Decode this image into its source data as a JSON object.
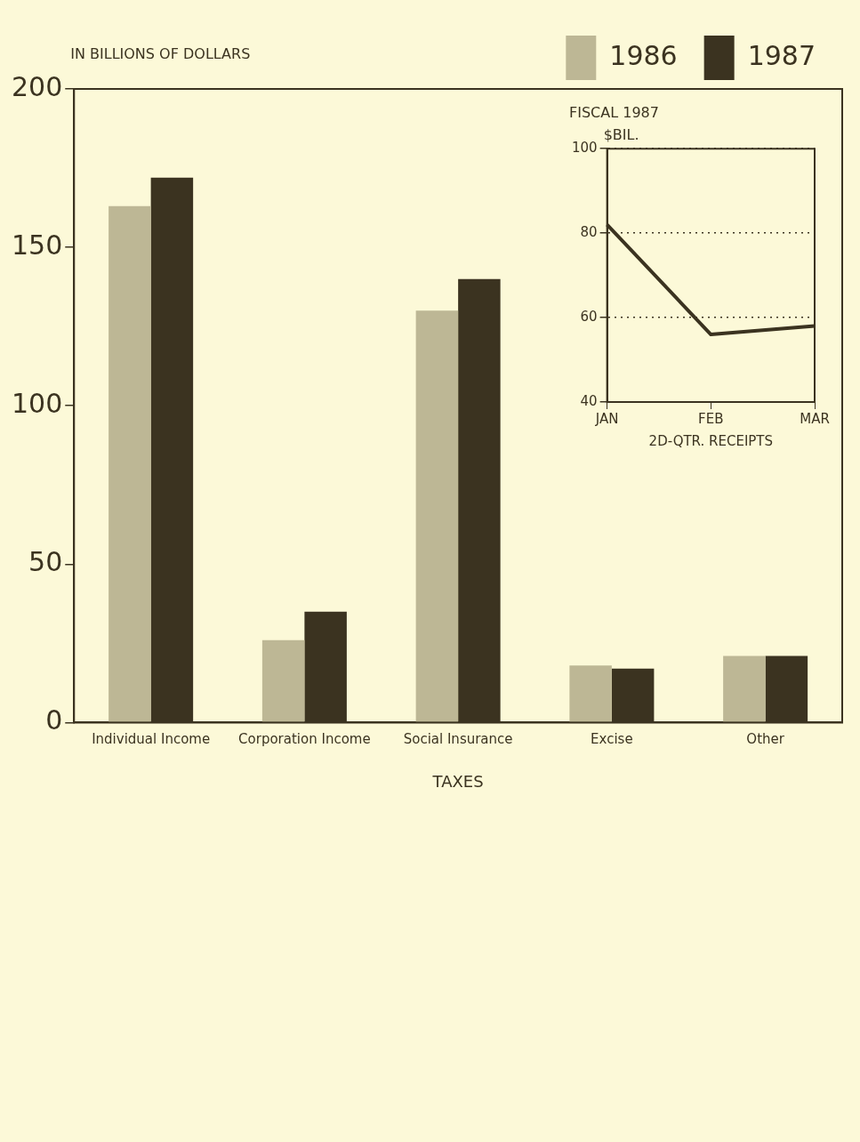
{
  "chart_data": [
    {
      "type": "bar",
      "ylabel": "IN BILLIONS OF DOLLARS",
      "xlabel": "TAXES",
      "categories": [
        "Individual Income",
        "Corporation Income",
        "Social Insurance",
        "Excise",
        "Other"
      ],
      "series": [
        {
          "name": "1986",
          "color": "#bdb795",
          "values": [
            163,
            26,
            130,
            18,
            21
          ]
        },
        {
          "name": "1987",
          "color": "#3b3320",
          "values": [
            172,
            35,
            140,
            17,
            21
          ]
        }
      ],
      "ylim": [
        0,
        200
      ],
      "yticks": [
        0,
        50,
        100,
        150,
        200
      ],
      "legend": "top right",
      "grid": false
    },
    {
      "type": "line",
      "title": "FISCAL 1987",
      "ylabel": "$BIL.",
      "xlabel": "2D-QTR. RECEIPTS",
      "categories": [
        "JAN",
        "FEB",
        "MAR"
      ],
      "series": [
        {
          "color": "#3b3320",
          "values": [
            82,
            56,
            58
          ]
        }
      ],
      "ylim": [
        40,
        100
      ],
      "yticks": [
        40,
        60,
        80,
        100
      ],
      "grid": "y",
      "marker": "none",
      "line_style": "solid"
    }
  ]
}
